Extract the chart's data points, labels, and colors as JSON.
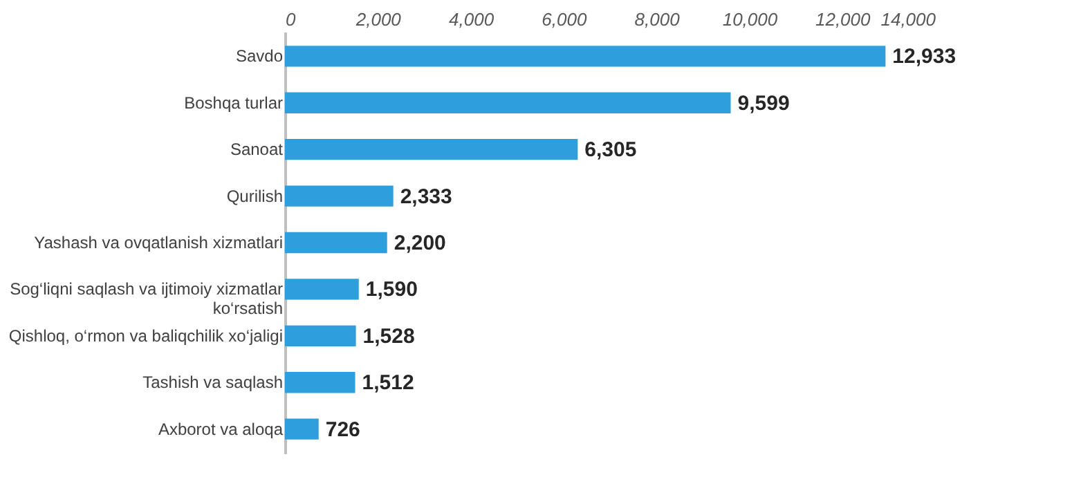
{
  "chart_data": {
    "type": "bar",
    "orientation": "horizontal",
    "categories": [
      "Savdo",
      "Boshqa turlar",
      "Sanoat",
      "Qurilish",
      "Yashash va ovqatlanish xizmatlari",
      "Sog‘liqni saqlash va ijtimoiy xizmatlar ko‘rsatish",
      "Qishloq, o‘rmon va baliqchilik xo‘jaligi",
      "Tashish va saqlash",
      "Axborot va aloqa"
    ],
    "values": [
      12933,
      9599,
      6305,
      2333,
      2200,
      1590,
      1528,
      1512,
      726
    ],
    "color": "#2e9fdc",
    "xlim": [
      0,
      14000
    ],
    "xticks": [
      0,
      {
        "value": 2000,
        "label": "2,000"
      },
      {
        "value": 4000,
        "label": "4,000"
      },
      {
        "value": 6000,
        "label": "6,000"
      },
      {
        "value": 8000,
        "label": "8,000"
      },
      {
        "value": 10000,
        "label": "10,000"
      },
      {
        "value": 12000,
        "label": "12,000"
      },
      {
        "value": 14000,
        "label": "14,000"
      }
    ],
    "value_labels": [
      "12,933",
      "9,599",
      "6,305",
      "2,333",
      "2,200",
      "1,590",
      "1,528",
      "1,512",
      "726"
    ],
    "grid": false
  }
}
